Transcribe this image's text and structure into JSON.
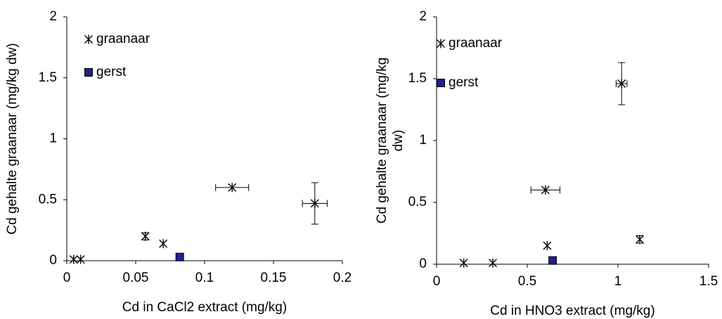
{
  "chart_data": [
    {
      "type": "scatter",
      "xlabel": "Cd in CaCl2 extract (mg/kg)",
      "ylabel": [
        "Cd gehalte graanaar (mg/kg dw)"
      ],
      "xlim": [
        0,
        0.2
      ],
      "xticks": [
        0,
        0.05,
        0.1,
        0.15,
        0.2
      ],
      "ylim": [
        0,
        2
      ],
      "yticks": [
        0,
        0.5,
        1,
        1.5,
        2
      ],
      "legend": "upper left",
      "grid": false,
      "series": [
        {
          "name": "graanaar",
          "marker": "asterisk",
          "color": "#000000",
          "x": [
            0.005,
            0.01,
            0.057,
            0.07,
            0.12,
            0.18
          ],
          "values": [
            0.01,
            0.01,
            0.2,
            0.14,
            0.6,
            0.47
          ],
          "xerr": [
            null,
            null,
            null,
            null,
            0.012,
            0.009
          ],
          "yerr": [
            null,
            null,
            0.03,
            null,
            null,
            0.17
          ]
        },
        {
          "name": "gerst",
          "marker": "square",
          "color": "#1f1f8f",
          "x": [
            0.082
          ],
          "values": [
            0.03
          ],
          "xerr": [
            null
          ],
          "yerr": [
            null
          ]
        }
      ]
    },
    {
      "type": "scatter",
      "xlabel": "Cd in HNO3 extract (mg/kg)",
      "ylabel": [
        "Cd gehalte graanaar (mg/kg",
        "dw)"
      ],
      "xlim": [
        0,
        1.5
      ],
      "xticks": [
        0,
        0.5,
        1,
        1.5
      ],
      "ylim": [
        0,
        2
      ],
      "yticks": [
        0,
        0.5,
        1,
        1.5,
        2
      ],
      "legend": "upper left",
      "grid": false,
      "series": [
        {
          "name": "graanaar",
          "marker": "asterisk",
          "color": "#000000",
          "x": [
            0.15,
            0.31,
            0.6,
            0.61,
            1.02,
            1.12
          ],
          "values": [
            0.01,
            0.01,
            0.6,
            0.15,
            1.46,
            0.2
          ],
          "xerr": [
            null,
            null,
            0.08,
            null,
            0.03,
            null
          ],
          "yerr": [
            null,
            null,
            null,
            null,
            0.17,
            0.03
          ]
        },
        {
          "name": "gerst",
          "marker": "square",
          "color": "#1f1f8f",
          "x": [
            0.64
          ],
          "values": [
            0.03
          ],
          "xerr": [
            null
          ],
          "yerr": [
            null
          ]
        }
      ]
    }
  ]
}
